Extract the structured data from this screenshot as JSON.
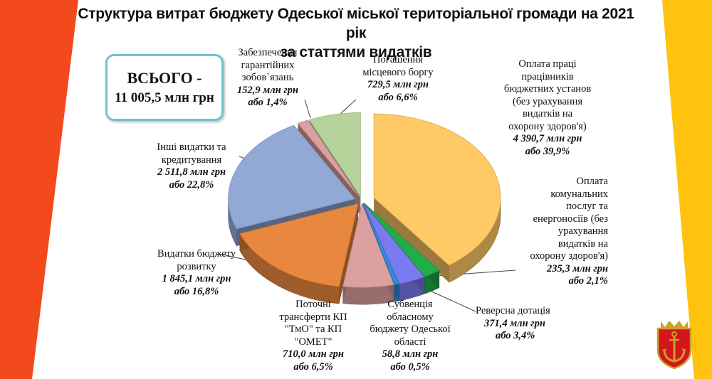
{
  "title_line1": "Структура витрат бюджету Одеської міської територіальної громади на 2021 рік",
  "title_line2": "за статтями видатків",
  "total": {
    "line1": "ВСЬОГО -",
    "line2": "11 005,5 млн грн"
  },
  "colors": {
    "left_band": "#f24a1c",
    "right_band": "#ffc20e"
  },
  "chart_data": {
    "type": "pie",
    "style": "3d-exploded",
    "total_value": 11005.5,
    "unit": "млн грн",
    "slices": [
      {
        "label_lines": [
          "Оплата праці",
          "працівників",
          "бюджетних установ",
          "(без урахування",
          "видатків на",
          "охорону здоров'я)"
        ],
        "value_text": "4 390,7 млн грн",
        "pct_text": "або 39,9%",
        "value": 4390.7,
        "pct": 39.9,
        "color": "#ffc966"
      },
      {
        "label_lines": [
          "Оплата",
          "комунальних",
          "послуг та",
          "енергоносіїв  (без",
          "урахування",
          "видатків на",
          "охорону здоров'я)"
        ],
        "value_text": "235,3 млн грн",
        "pct_text": "або 2,1%",
        "value": 235.3,
        "pct": 2.1,
        "color": "#1fae4b"
      },
      {
        "label_lines": [
          "Реверсна дотація"
        ],
        "value_text": "371,4 млн грн",
        "pct_text": "або 3,4%",
        "value": 371.4,
        "pct": 3.4,
        "color": "#7b7bf0"
      },
      {
        "label_lines": [
          "Субвенція",
          "обласному",
          "бюджету Одеської",
          "області"
        ],
        "value_text": "58,8 млн грн",
        "pct_text": "або 0,5%",
        "value": 58.8,
        "pct": 0.5,
        "color": "#2f8ee0"
      },
      {
        "label_lines": [
          "Поточні",
          "трансферти КП",
          "\"ТмО\" та КП",
          "\"ОМЕТ\""
        ],
        "value_text": "710,0 млн грн",
        "pct_text": "або 6,5%",
        "value": 710.0,
        "pct": 6.5,
        "color": "#dca0a0"
      },
      {
        "label_lines": [
          "Видатки бюджету",
          "розвитку"
        ],
        "value_text": "1 845,1 млн грн",
        "pct_text": "або 16,8%",
        "value": 1845.1,
        "pct": 16.8,
        "color": "#e8873e"
      },
      {
        "label_lines": [
          "Інші видатки та",
          "кредитування"
        ],
        "value_text": "2 511,8 млн грн",
        "pct_text": "або 22,8%",
        "value": 2511.8,
        "pct": 22.8,
        "color": "#92a9d6"
      },
      {
        "label_lines": [
          "Забезпечення",
          "гарантійних",
          "зобов`язань"
        ],
        "value_text": "152,9 млн грн",
        "pct_text": "або 1,4%",
        "value": 152.9,
        "pct": 1.4,
        "color": "#dca0a0"
      },
      {
        "label_lines": [
          "Погашення",
          "місцевого боргу"
        ],
        "value_text": "729,5 млн грн",
        "pct_text": "або 6,6%",
        "value": 729.5,
        "pct": 6.6,
        "color": "#b5d39a"
      }
    ]
  }
}
